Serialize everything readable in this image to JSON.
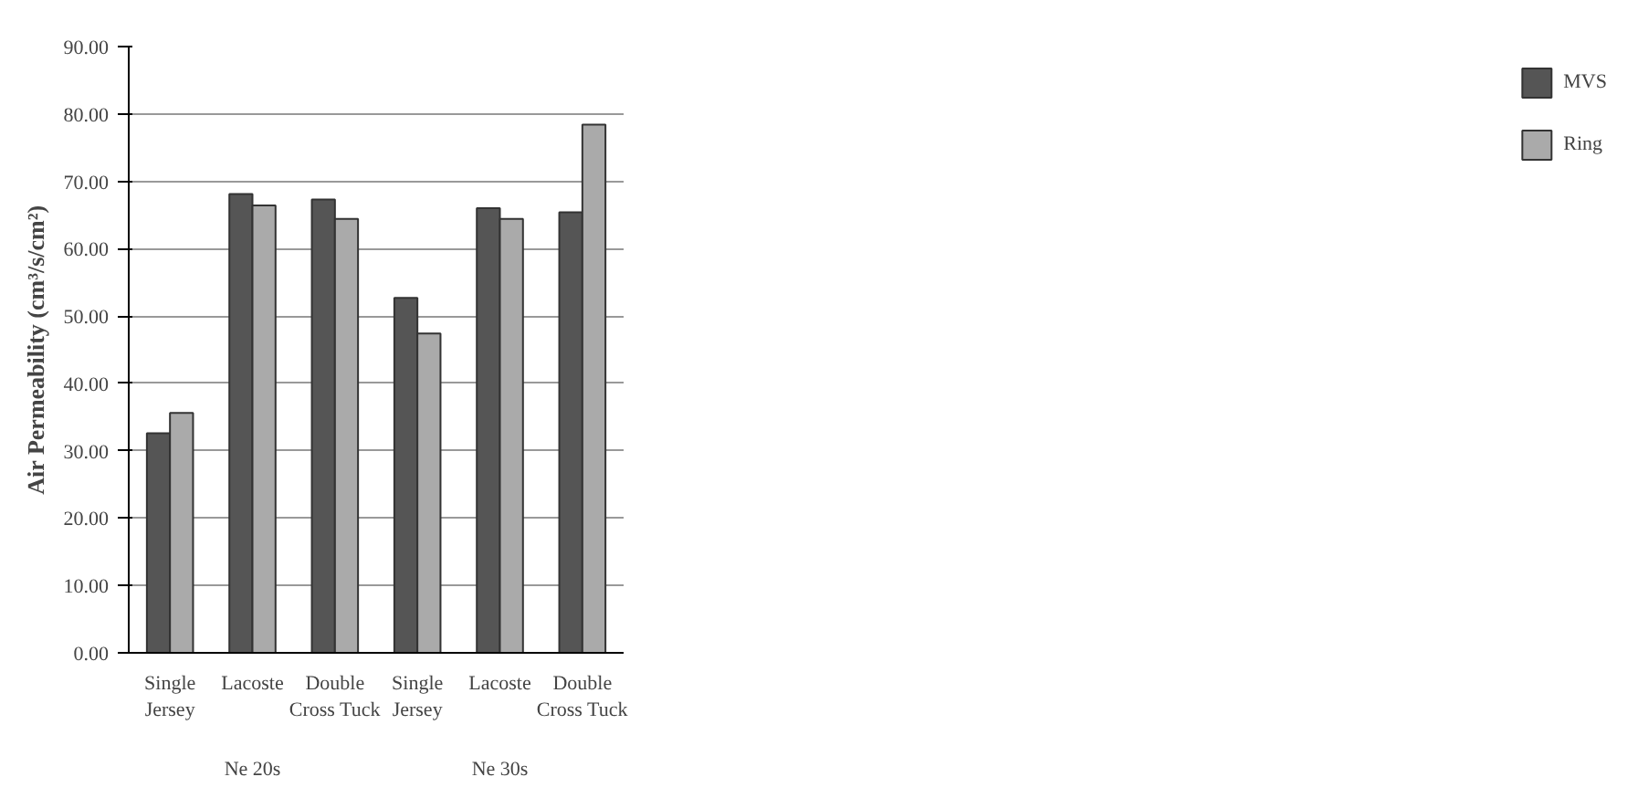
{
  "chart_data": {
    "type": "bar",
    "ylabel": "Air Permeability (cm³/s/cm²)",
    "categories": [
      "Single Jersey",
      "Lacoste",
      "Double Cross Tuck",
      "Single Jersey",
      "Lacoste",
      "Double Cross Tuck"
    ],
    "series": [
      {
        "name": "MVS",
        "color": "#555555",
        "values": [
          32.6,
          68.1,
          67.3,
          52.7,
          66.0,
          65.4
        ]
      },
      {
        "name": "Ring",
        "color": "#aaaaaa",
        "values": [
          35.6,
          66.4,
          64.4,
          47.4,
          64.4,
          78.4
        ]
      }
    ],
    "annotations": [
      "Ne 20s",
      "Ne 30s"
    ],
    "ylim": [
      0,
      90
    ],
    "yticks": [
      {
        "value": 0,
        "label": "0.00"
      },
      {
        "value": 10,
        "label": "10.00"
      },
      {
        "value": 20,
        "label": "20.00"
      },
      {
        "value": 30,
        "label": "30.00"
      },
      {
        "value": 40,
        "label": "40.00"
      },
      {
        "value": 50,
        "label": "50.00"
      },
      {
        "value": 60,
        "label": "60.00"
      },
      {
        "value": 70,
        "label": "70.00"
      },
      {
        "value": 80,
        "label": "80.00"
      },
      {
        "value": 90,
        "label": "90.00"
      }
    ],
    "grid": "y",
    "legend": "right"
  }
}
